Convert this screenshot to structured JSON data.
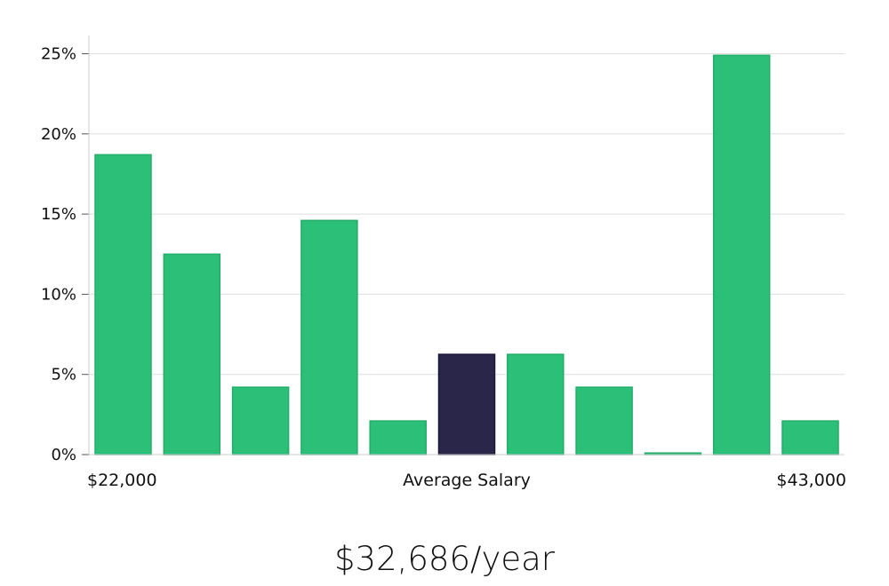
{
  "chart_data": {
    "type": "bar",
    "y_ticks": [
      0,
      5,
      10,
      15,
      20,
      25
    ],
    "y_tick_labels": [
      "0%",
      "5%",
      "10%",
      "15%",
      "20%",
      "25%"
    ],
    "ylim": [
      0,
      26
    ],
    "values": [
      18.7,
      12.5,
      4.2,
      14.6,
      2.1,
      6.25,
      6.25,
      4.2,
      0.1,
      24.9,
      2.1
    ],
    "highlight_index": 5,
    "x_label_left": "$22,000",
    "x_label_center": "Average Salary",
    "x_label_right": "$43,000",
    "grid": true,
    "colors": {
      "bar": "#2bbf77",
      "bar_edge": "#22ad69",
      "highlight": "#29264a",
      "highlight_edge": "#1a1838",
      "grid": "#dddddd",
      "axis": "#cccccc"
    }
  },
  "salary_display": "$32,686/year"
}
